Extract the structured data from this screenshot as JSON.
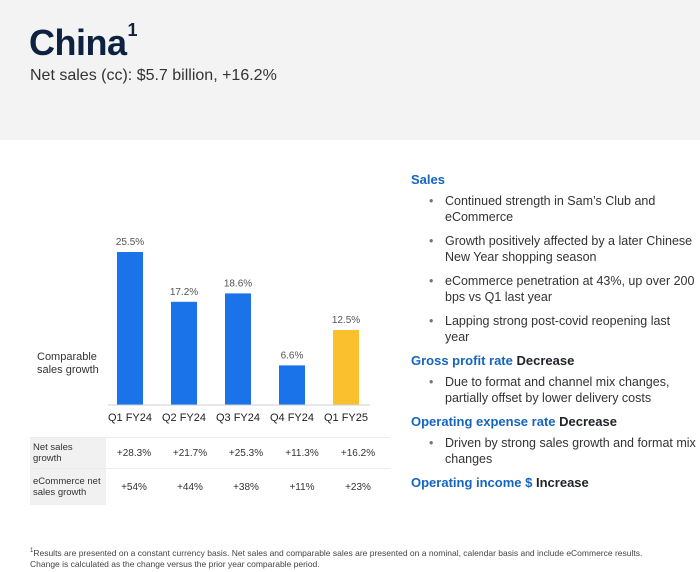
{
  "header": {
    "title": "China",
    "title_sup": "1",
    "subtitle": "Net sales (cc): $5.7 billion, +16.2%"
  },
  "chart_label": "Comparable sales growth",
  "chart_data": {
    "type": "bar",
    "categories": [
      "Q1 FY24",
      "Q2 FY24",
      "Q3 FY24",
      "Q4 FY24",
      "Q1 FY25"
    ],
    "values": [
      25.5,
      17.2,
      18.6,
      6.6,
      12.5
    ],
    "value_labels": [
      "25.5%",
      "17.2%",
      "18.6%",
      "6.6%",
      "12.5%"
    ],
    "colors": [
      "#1a73e8",
      "#1a73e8",
      "#1a73e8",
      "#1a73e8",
      "#fbc02d"
    ],
    "ylim": [
      0,
      25.5
    ]
  },
  "table": {
    "rows": [
      {
        "label": "Net sales growth",
        "values": [
          "+28.3%",
          "+21.7%",
          "+25.3%",
          "+11.3%",
          "+16.2%"
        ]
      },
      {
        "label": "eCommerce net sales growth",
        "values": [
          "+54%",
          "+44%",
          "+38%",
          "+11%",
          "+23%"
        ]
      }
    ]
  },
  "sections": {
    "sales": {
      "title": "Sales",
      "bullets": [
        "Continued strength in Sam’s Club and eCommerce",
        "Growth positively affected by a later Chinese New Year shopping season",
        "eCommerce penetration at 43%, up over 200 bps vs Q1 last year",
        "Lapping strong post-covid reopening last year"
      ]
    },
    "gross_profit": {
      "title": "Gross profit rate",
      "suffix": "Decrease",
      "bullets": [
        "Due to format and channel mix changes, partially offset by lower delivery costs"
      ]
    },
    "opex": {
      "title": "Operating expense rate",
      "suffix": "Decrease",
      "bullets": [
        "Driven by strong sales growth and format mix changes"
      ]
    },
    "op_income": {
      "title": "Operating income $",
      "suffix": "Increase"
    }
  },
  "footnote": {
    "sup": "1",
    "text": "Results are presented on a constant currency basis. Net sales and comparable sales are presented on a nominal, calendar basis and include eCommerce results. Change is calculated as the change versus the prior year comparable period."
  }
}
